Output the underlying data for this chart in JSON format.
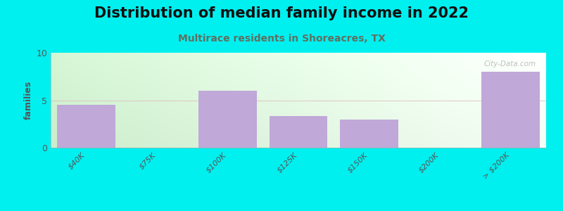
{
  "title": "Distribution of median family income in 2022",
  "subtitle": "Multirace residents in Shoreacres, TX",
  "categories": [
    "$40K",
    "$75K",
    "$100K",
    "$125K",
    "$150K",
    "$200K",
    "> $200K"
  ],
  "values": [
    4.5,
    0,
    6.0,
    3.3,
    3.0,
    0,
    8.0
  ],
  "bar_color": "#c0a8d8",
  "bar_edge_color": "#b090c8",
  "bg_color_topleft": "#d8f0d8",
  "bg_color_topright": "#f0f8f0",
  "bg_color_bottomleft": "#c8ecc8",
  "bg_color_bottomright": "#f5f8f5",
  "outer_background": "#00f0f0",
  "ylabel": "families",
  "ylim": [
    0,
    10
  ],
  "yticks": [
    0,
    5,
    10
  ],
  "grid_color": "#e0c0c0",
  "grid_alpha": 0.8,
  "watermark": "City-Data.com",
  "title_fontsize": 15,
  "subtitle_fontsize": 10,
  "subtitle_color": "#607060"
}
